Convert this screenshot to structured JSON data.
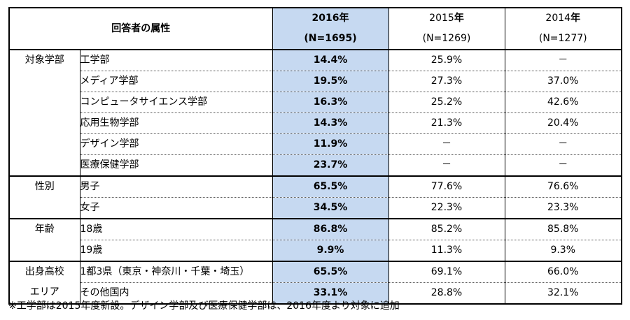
{
  "header": {
    "attribute_label": "回答者の属性",
    "columns": [
      {
        "year": "2016",
        "nen": "年",
        "n": "(N=1695)"
      },
      {
        "year": "2015",
        "nen": "年",
        "n": "(N=1269)"
      },
      {
        "year": "2014",
        "nen": "年",
        "n": "(N=1277)"
      }
    ]
  },
  "groups": [
    {
      "category_lines": [
        "対象学部"
      ],
      "rows": [
        {
          "label": "工学部",
          "v2016": "14.4%",
          "v2015": "25.9%",
          "v2014": "－"
        },
        {
          "label": "メディア学部",
          "v2016": "19.5%",
          "v2015": "27.3%",
          "v2014": "37.0%"
        },
        {
          "label": "コンピュータサイエンス学部",
          "v2016": "16.3%",
          "v2015": "25.2%",
          "v2014": "42.6%"
        },
        {
          "label": "応用生物学部",
          "v2016": "14.3%",
          "v2015": "21.3%",
          "v2014": "20.4%"
        },
        {
          "label": "デザイン学部",
          "v2016": "11.9%",
          "v2015": "－",
          "v2014": "－"
        },
        {
          "label": "医療保健学部",
          "v2016": "23.7%",
          "v2015": "－",
          "v2014": "－"
        }
      ]
    },
    {
      "category_lines": [
        "性別"
      ],
      "rows": [
        {
          "label": "男子",
          "v2016": "65.5%",
          "v2015": "77.6%",
          "v2014": "76.6%"
        },
        {
          "label": "女子",
          "v2016": "34.5%",
          "v2015": "22.3%",
          "v2014": "23.3%"
        }
      ]
    },
    {
      "category_lines": [
        "年齢"
      ],
      "rows": [
        {
          "label": "18歳",
          "v2016": "86.8%",
          "v2015": "85.2%",
          "v2014": "85.8%"
        },
        {
          "label": "19歳",
          "v2016": "9.9%",
          "v2015": "11.3%",
          "v2014": "9.3%"
        }
      ]
    },
    {
      "category_lines": [
        "出身高校",
        "エリア"
      ],
      "rows": [
        {
          "label": "1都3県（東京・神奈川・千葉・埼玉）",
          "v2016": "65.5%",
          "v2015": "69.1%",
          "v2014": "66.0%"
        },
        {
          "label": "その他国内",
          "v2016": "33.1%",
          "v2015": "28.8%",
          "v2014": "32.1%"
        }
      ]
    }
  ],
  "footnote": "※工学部は2015年度新設。デザイン学部及び医療保健学部は、2016年度より対象に追加",
  "colors": {
    "highlight_2016": "#c6d9f1",
    "border": "#000000"
  }
}
